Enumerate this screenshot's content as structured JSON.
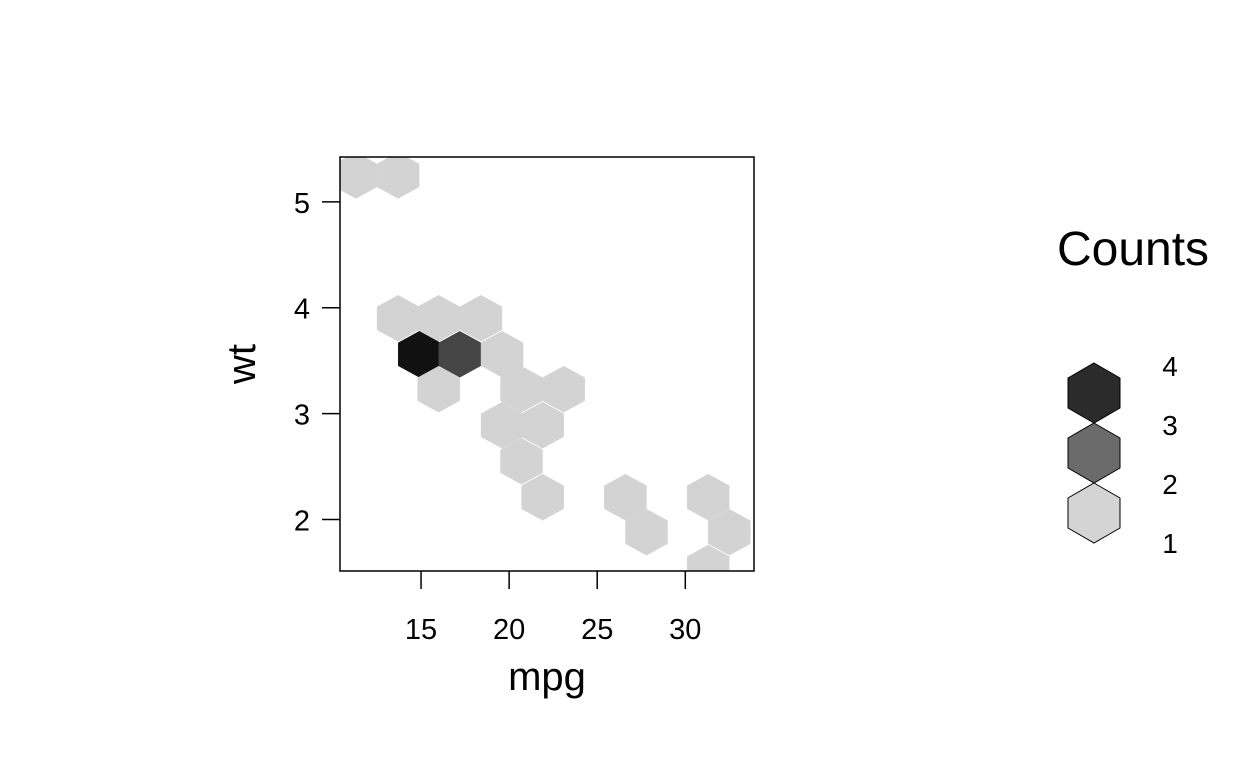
{
  "chart_data": {
    "type": "hexbin",
    "xlabel": "mpg",
    "ylabel": "wt",
    "xlim": [
      10.4,
      33.9
    ],
    "ylim": [
      1.513,
      5.424
    ],
    "x_ticks": [
      15,
      20,
      25,
      30
    ],
    "y_ticks": [
      2,
      3,
      4,
      5
    ],
    "bins": [
      {
        "x": 11.3,
        "y": 5.25,
        "count": 1
      },
      {
        "x": 13.7,
        "y": 5.25,
        "count": 1
      },
      {
        "x": 13.7,
        "y": 3.9,
        "count": 1
      },
      {
        "x": 16.0,
        "y": 3.9,
        "count": 1
      },
      {
        "x": 18.4,
        "y": 3.9,
        "count": 1
      },
      {
        "x": 14.9,
        "y": 3.56,
        "count": 4
      },
      {
        "x": 17.2,
        "y": 3.56,
        "count": 3
      },
      {
        "x": 19.6,
        "y": 3.56,
        "count": 1
      },
      {
        "x": 16.0,
        "y": 3.23,
        "count": 1
      },
      {
        "x": 20.7,
        "y": 3.23,
        "count": 1
      },
      {
        "x": 23.1,
        "y": 3.23,
        "count": 1
      },
      {
        "x": 19.6,
        "y": 2.89,
        "count": 1
      },
      {
        "x": 21.9,
        "y": 2.89,
        "count": 1
      },
      {
        "x": 20.7,
        "y": 2.55,
        "count": 1
      },
      {
        "x": 21.9,
        "y": 2.21,
        "count": 1
      },
      {
        "x": 26.6,
        "y": 2.21,
        "count": 1
      },
      {
        "x": 31.3,
        "y": 2.21,
        "count": 1
      },
      {
        "x": 27.8,
        "y": 1.88,
        "count": 1
      },
      {
        "x": 32.5,
        "y": 1.88,
        "count": 1
      },
      {
        "x": 31.3,
        "y": 1.54,
        "count": 1
      }
    ],
    "legend": {
      "title": "Counts",
      "labels": [
        "4",
        "3",
        "2",
        "1"
      ],
      "colors": [
        "#2b2b2b",
        "#6b6b6b",
        "#d4d4d4"
      ]
    },
    "count_colors": {
      "1": "#d3d3d3",
      "3": "#454545",
      "4": "#111111"
    }
  }
}
